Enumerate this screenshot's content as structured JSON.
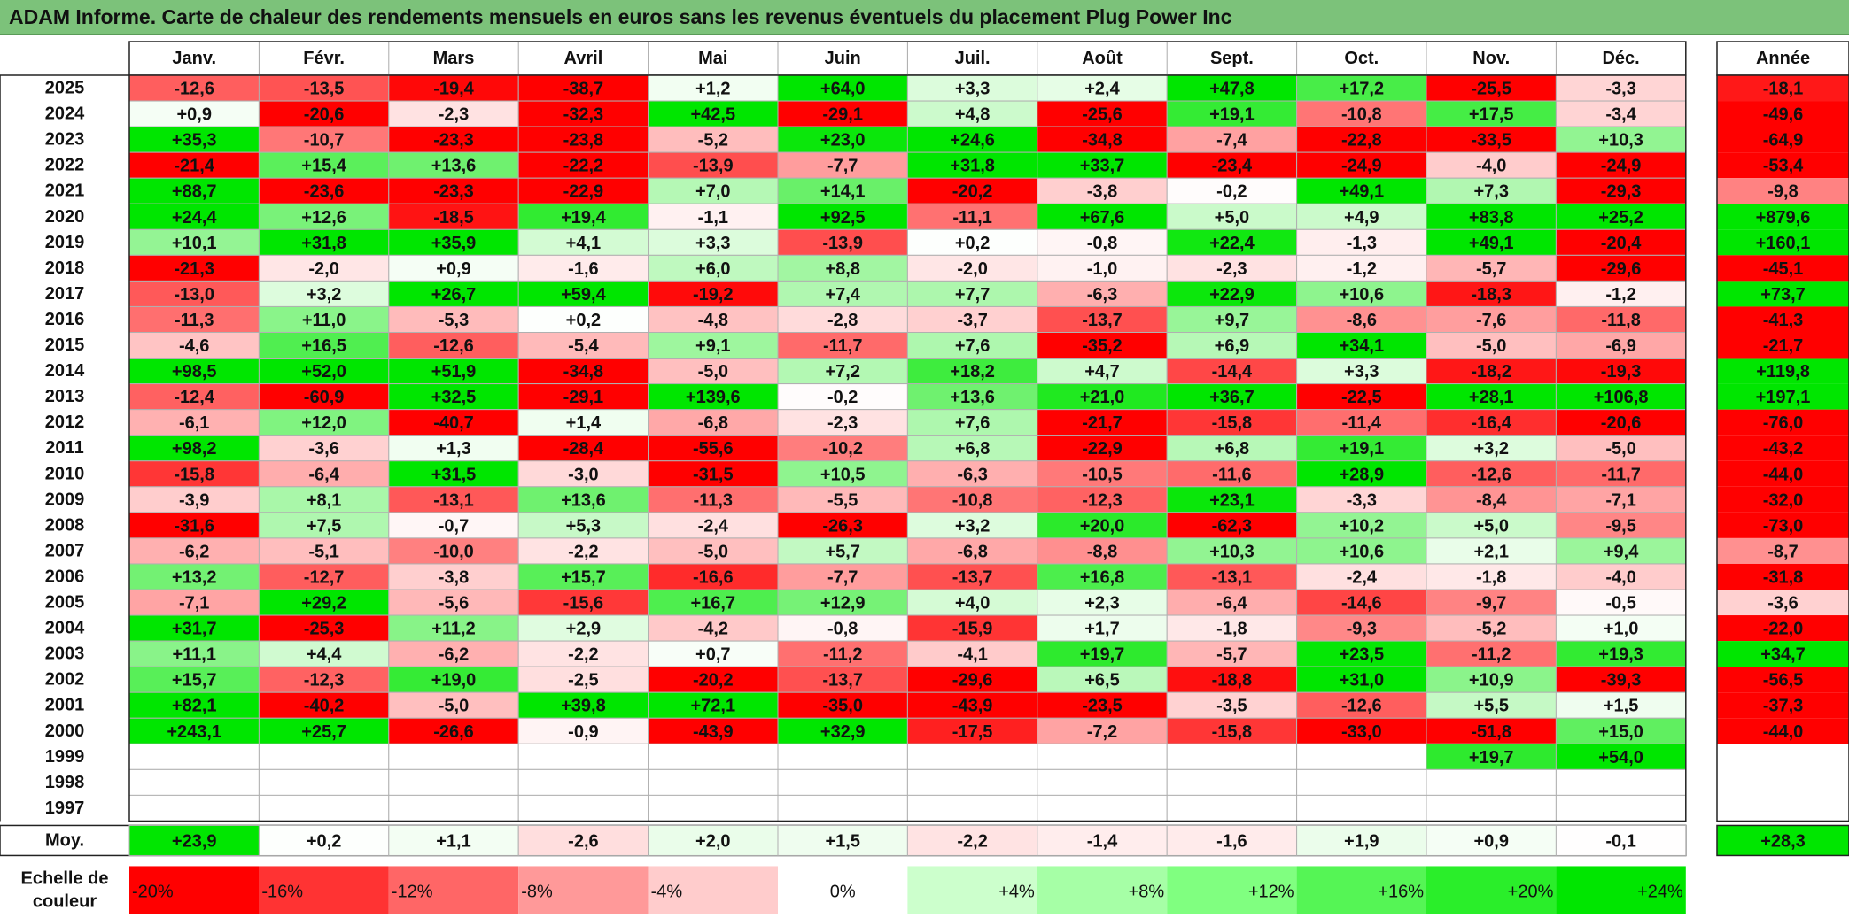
{
  "title": "ADAM Informe. Carte de chaleur des rendements mensuels en euros sans les revenus éventuels du placement Plug Power Inc",
  "chart_data": {
    "type": "heatmap",
    "title": "ADAM Informe. Carte de chaleur des rendements mensuels en euros sans les revenus éventuels du placement Plug Power Inc",
    "months": [
      "Janv.",
      "Févr.",
      "Mars",
      "Avril",
      "Mai",
      "Juin",
      "Juil.",
      "Août",
      "Sept.",
      "Oct.",
      "Nov.",
      "Déc."
    ],
    "year_header": "Année",
    "rows": [
      {
        "year": "2025",
        "values": [
          -12.6,
          -13.5,
          -19.4,
          -38.7,
          1.2,
          64.0,
          3.3,
          2.4,
          47.8,
          17.2,
          -25.5,
          -3.3
        ],
        "annual": -18.1
      },
      {
        "year": "2024",
        "values": [
          0.9,
          -20.6,
          -2.3,
          -32.3,
          42.5,
          -29.1,
          4.8,
          -25.6,
          19.1,
          -10.8,
          17.5,
          -3.4
        ],
        "annual": -49.6
      },
      {
        "year": "2023",
        "values": [
          35.3,
          -10.7,
          -23.3,
          -23.8,
          -5.2,
          23.0,
          24.6,
          -34.8,
          -7.4,
          -22.8,
          -33.5,
          10.3
        ],
        "annual": -64.9
      },
      {
        "year": "2022",
        "values": [
          -21.4,
          15.4,
          13.6,
          -22.2,
          -13.9,
          -7.7,
          31.8,
          33.7,
          -23.4,
          -24.9,
          -4.0,
          -24.9
        ],
        "annual": -53.4
      },
      {
        "year": "2021",
        "values": [
          88.7,
          -23.6,
          -23.3,
          -22.9,
          7.0,
          14.1,
          -20.2,
          -3.8,
          -0.2,
          49.1,
          7.3,
          -29.3
        ],
        "annual": -9.8
      },
      {
        "year": "2020",
        "values": [
          24.4,
          12.6,
          -18.5,
          19.4,
          -1.1,
          92.5,
          -11.1,
          67.6,
          5.0,
          4.9,
          83.8,
          25.2
        ],
        "annual": 879.6
      },
      {
        "year": "2019",
        "values": [
          10.1,
          31.8,
          35.9,
          4.1,
          3.3,
          -13.9,
          0.2,
          -0.8,
          22.4,
          -1.3,
          49.1,
          -20.4
        ],
        "annual": 160.1
      },
      {
        "year": "2018",
        "values": [
          -21.3,
          -2.0,
          0.9,
          -1.6,
          6.0,
          8.8,
          -2.0,
          -1.0,
          -2.3,
          -1.2,
          -5.7,
          -29.6
        ],
        "annual": -45.1
      },
      {
        "year": "2017",
        "values": [
          -13.0,
          3.2,
          26.7,
          59.4,
          -19.2,
          7.4,
          7.7,
          -6.3,
          22.9,
          10.6,
          -18.3,
          -1.2
        ],
        "annual": 73.7
      },
      {
        "year": "2016",
        "values": [
          -11.3,
          11.0,
          -5.3,
          0.2,
          -4.8,
          -2.8,
          -3.7,
          -13.7,
          9.7,
          -8.6,
          -7.6,
          -11.8
        ],
        "annual": -41.3
      },
      {
        "year": "2015",
        "values": [
          -4.6,
          16.5,
          -12.6,
          -5.4,
          9.1,
          -11.7,
          7.6,
          -35.2,
          6.9,
          34.1,
          -5.0,
          -6.9
        ],
        "annual": -21.7
      },
      {
        "year": "2014",
        "values": [
          98.5,
          52.0,
          51.9,
          -34.8,
          -5.0,
          7.2,
          18.2,
          4.7,
          -14.4,
          3.3,
          -18.2,
          -19.3
        ],
        "annual": 119.8
      },
      {
        "year": "2013",
        "values": [
          -12.4,
          -60.9,
          32.5,
          -29.1,
          139.6,
          -0.2,
          13.6,
          21.0,
          36.7,
          -22.5,
          28.1,
          106.8
        ],
        "annual": 197.1
      },
      {
        "year": "2012",
        "values": [
          -6.1,
          12.0,
          -40.7,
          1.4,
          -6.8,
          -2.3,
          7.6,
          -21.7,
          -15.8,
          -11.4,
          -16.4,
          -20.6
        ],
        "annual": -76.0
      },
      {
        "year": "2011",
        "values": [
          98.2,
          -3.6,
          1.3,
          -28.4,
          -55.6,
          -10.2,
          6.8,
          -22.9,
          6.8,
          19.1,
          3.2,
          -5.0
        ],
        "annual": -43.2
      },
      {
        "year": "2010",
        "values": [
          -15.8,
          -6.4,
          31.5,
          -3.0,
          -31.5,
          10.5,
          -6.3,
          -10.5,
          -11.6,
          28.9,
          -12.6,
          -11.7
        ],
        "annual": -44.0
      },
      {
        "year": "2009",
        "values": [
          -3.9,
          8.1,
          -13.1,
          13.6,
          -11.3,
          -5.5,
          -10.8,
          -12.3,
          23.1,
          -3.3,
          -8.4,
          -7.1
        ],
        "annual": -32.0
      },
      {
        "year": "2008",
        "values": [
          -31.6,
          7.5,
          -0.7,
          5.3,
          -2.4,
          -26.3,
          3.2,
          20.0,
          -62.3,
          10.2,
          5.0,
          -9.5
        ],
        "annual": -73.0
      },
      {
        "year": "2007",
        "values": [
          -6.2,
          -5.1,
          -10.0,
          -2.2,
          -5.0,
          5.7,
          -6.8,
          -8.8,
          10.3,
          10.6,
          2.1,
          9.4
        ],
        "annual": -8.7
      },
      {
        "year": "2006",
        "values": [
          13.2,
          -12.7,
          -3.8,
          15.7,
          -16.6,
          -7.7,
          -13.7,
          16.8,
          -13.1,
          -2.4,
          -1.8,
          -4.0
        ],
        "annual": -31.8
      },
      {
        "year": "2005",
        "values": [
          -7.1,
          29.2,
          -5.6,
          -15.6,
          16.7,
          12.9,
          4.0,
          2.3,
          -6.4,
          -14.6,
          -9.7,
          -0.5
        ],
        "annual": -3.6
      },
      {
        "year": "2004",
        "values": [
          31.7,
          -25.3,
          11.2,
          2.9,
          -4.2,
          -0.8,
          -15.9,
          1.7,
          -1.8,
          -9.3,
          -5.2,
          1.0
        ],
        "annual": -22.0
      },
      {
        "year": "2003",
        "values": [
          11.1,
          4.4,
          -6.2,
          -2.2,
          0.7,
          -11.2,
          -4.1,
          19.7,
          -5.7,
          23.5,
          -11.2,
          19.3
        ],
        "annual": 34.7
      },
      {
        "year": "2002",
        "values": [
          15.7,
          -12.3,
          19.0,
          -2.5,
          -20.2,
          -13.7,
          -29.6,
          6.5,
          -18.8,
          31.0,
          10.9,
          -39.3
        ],
        "annual": -56.5
      },
      {
        "year": "2001",
        "values": [
          82.1,
          -40.2,
          -5.0,
          39.8,
          72.1,
          -35.0,
          -43.9,
          -23.5,
          -3.5,
          -12.6,
          5.5,
          1.5
        ],
        "annual": -37.3
      },
      {
        "year": "2000",
        "values": [
          243.1,
          25.7,
          -26.6,
          -0.9,
          -43.9,
          32.9,
          -17.5,
          -7.2,
          -15.8,
          -33.0,
          -51.8,
          15.0
        ],
        "annual": -44.0
      },
      {
        "year": "1999",
        "values": [
          null,
          null,
          null,
          null,
          null,
          null,
          null,
          null,
          null,
          null,
          19.7,
          54.0
        ],
        "annual": null
      },
      {
        "year": "1998",
        "values": [
          null,
          null,
          null,
          null,
          null,
          null,
          null,
          null,
          null,
          null,
          null,
          null
        ],
        "annual": null
      },
      {
        "year": "1997",
        "values": [
          null,
          null,
          null,
          null,
          null,
          null,
          null,
          null,
          null,
          null,
          null,
          null
        ],
        "annual": null
      }
    ],
    "average": {
      "label": "Moy.",
      "values": [
        23.9,
        0.2,
        1.1,
        -2.6,
        2.0,
        1.5,
        -2.2,
        -1.4,
        -1.6,
        1.9,
        0.9,
        -0.1
      ],
      "annual": 28.3
    },
    "color_scale": {
      "label": "Echelle de couleur",
      "steps": [
        {
          "label": "-20%",
          "color": "#ff0000"
        },
        {
          "label": "-16%",
          "color": "#ff3333"
        },
        {
          "label": "-12%",
          "color": "#ff6666"
        },
        {
          "label": "-8%",
          "color": "#ff9999"
        },
        {
          "label": "-4%",
          "color": "#ffcccc"
        },
        {
          "label": "0%",
          "color": "#ffffff"
        },
        {
          "label": "+4%",
          "color": "#ccffcc"
        },
        {
          "label": "+8%",
          "color": "#a6ffa6"
        },
        {
          "label": "+12%",
          "color": "#80ff80"
        },
        {
          "label": "+16%",
          "color": "#55f555"
        },
        {
          "label": "+20%",
          "color": "#2aee2a"
        },
        {
          "label": "+24%",
          "color": "#00e600"
        }
      ]
    },
    "colors": {
      "negative": "#ff0000",
      "neutral": "#ffffff",
      "positive": "#00e600"
    }
  }
}
